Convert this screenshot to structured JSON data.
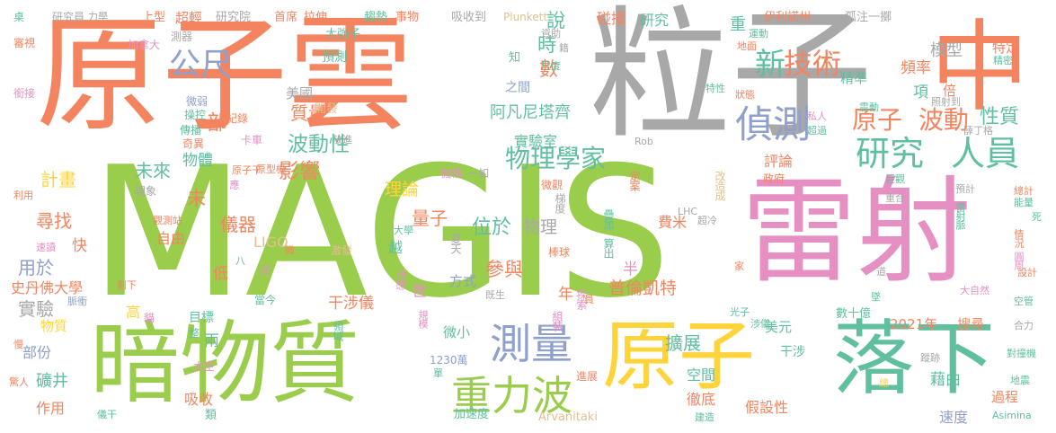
{
  "colors": {
    "salmon": "#f4845f",
    "green": "#9acd4c",
    "gray": "#a8a8a8",
    "pink": "#e58fc2",
    "teal": "#5fbf9f",
    "yellow": "#ffd43a",
    "blue": "#8ea0cb",
    "tan": "#e2c08f"
  },
  "words": [
    {
      "id": "MAGIS",
      "text": "MAGIS",
      "color": "green"
    },
    {
      "id": "原子雲",
      "text": "原子雲",
      "color": "salmon"
    },
    {
      "id": "粒子",
      "text": "粒子",
      "color": "gray"
    },
    {
      "id": "中",
      "text": "中",
      "color": "salmon"
    },
    {
      "id": "雷射",
      "text": "雷射",
      "color": "pink"
    },
    {
      "id": "暗物質",
      "text": "暗物質",
      "color": "green"
    },
    {
      "id": "原子_big",
      "text": "原子",
      "color": "yellow"
    },
    {
      "id": "落下",
      "text": "落下",
      "color": "teal"
    },
    {
      "id": "測量",
      "text": "測量",
      "color": "blue"
    },
    {
      "id": "重力波",
      "text": "重力波",
      "color": "green"
    },
    {
      "id": "公尺",
      "text": "公尺",
      "color": "blue"
    },
    {
      "id": "偵測",
      "text": "偵測",
      "color": "blue"
    },
    {
      "id": "研究_teal",
      "text": "研究",
      "color": "teal"
    },
    {
      "id": "人員",
      "text": "人員",
      "color": "teal"
    },
    {
      "id": "新",
      "text": "新",
      "color": "teal"
    },
    {
      "id": "技術",
      "text": "技術",
      "color": "salmon"
    },
    {
      "id": "原子_small",
      "text": "原子",
      "color": "salmon"
    },
    {
      "id": "波動_mid",
      "text": "波動",
      "color": "salmon"
    },
    {
      "id": "物理學家",
      "text": "物理學家",
      "color": "teal"
    },
    {
      "id": "波動性",
      "text": "波動性",
      "color": "teal"
    },
    {
      "id": "影響",
      "text": "影響",
      "color": "salmon"
    },
    {
      "id": "質量",
      "text": "質量",
      "color": "salmon"
    },
    {
      "id": "未來",
      "text": "未來",
      "color": "teal"
    },
    {
      "id": "計畫",
      "text": "計畫",
      "color": "yellow"
    },
    {
      "id": "尋找",
      "text": "尋找",
      "color": "salmon"
    },
    {
      "id": "實驗",
      "text": "實驗",
      "color": "gray"
    },
    {
      "id": "用於",
      "text": "用於",
      "color": "blue"
    },
    {
      "id": "史丹佛大學",
      "text": "史丹佛大學",
      "color": "salmon"
    },
    {
      "id": "物質",
      "text": "物質",
      "color": "yellow"
    },
    {
      "id": "部份",
      "text": "部份",
      "color": "blue"
    },
    {
      "id": "礦井",
      "text": "礦井",
      "color": "teal"
    },
    {
      "id": "作用",
      "text": "作用",
      "color": "salmon"
    },
    {
      "id": "儀器",
      "text": "儀器",
      "color": "salmon"
    },
    {
      "id": "自由",
      "text": "自由",
      "color": "salmon"
    },
    {
      "id": "LIGO",
      "text": "LIGO",
      "color": "tan"
    },
    {
      "id": "理論",
      "text": "理論",
      "color": "yellow"
    },
    {
      "id": "量子",
      "text": "量子",
      "color": "salmon"
    },
    {
      "id": "位於",
      "text": "位於",
      "color": "teal"
    },
    {
      "id": "物理",
      "text": "物理",
      "color": "gray"
    },
    {
      "id": "參與",
      "text": "參與",
      "color": "salmon"
    },
    {
      "id": "方式",
      "text": "方式",
      "color": "blue"
    },
    {
      "id": "實驗室",
      "text": "實驗室",
      "color": "teal"
    },
    {
      "id": "阿凡尼塔齊",
      "text": "阿凡尼塔齊",
      "color": "teal"
    },
    {
      "id": "之間",
      "text": "之間",
      "color": "blue"
    },
    {
      "id": "美國",
      "text": "美國",
      "color": "gray"
    },
    {
      "id": "預測",
      "text": "預測",
      "color": "teal"
    },
    {
      "id": "開發",
      "text": "開發",
      "color": "tan"
    },
    {
      "id": "大強子",
      "text": "大強子",
      "color": "teal"
    },
    {
      "id": "普倫凱特",
      "text": "普倫凱特",
      "color": "salmon"
    },
    {
      "id": "費米",
      "text": "費米",
      "color": "salmon"
    },
    {
      "id": "半",
      "text": "半",
      "color": "pink"
    },
    {
      "id": "擴展",
      "text": "擴展",
      "color": "teal"
    },
    {
      "id": "空間",
      "text": "空間",
      "color": "teal"
    },
    {
      "id": "徹底",
      "text": "徹底",
      "color": "salmon"
    },
    {
      "id": "假設性",
      "text": "假設性",
      "color": "salmon"
    },
    {
      "id": "美元",
      "text": "美元",
      "color": "teal"
    },
    {
      "id": "干涉_r",
      "text": "干涉",
      "color": "teal"
    },
    {
      "id": "2021年",
      "text": "2021年",
      "color": "salmon"
    },
    {
      "id": "搜尋",
      "text": "搜尋",
      "color": "salmon"
    },
    {
      "id": "干涉儀",
      "text": "干涉儀",
      "color": "salmon"
    },
    {
      "id": "高",
      "text": "高",
      "color": "yellow"
    },
    {
      "id": "目標",
      "text": "目標",
      "color": "teal"
    },
    {
      "id": "兩",
      "text": "兩",
      "color": "teal"
    },
    {
      "id": "吸收",
      "text": "吸收",
      "color": "salmon"
    },
    {
      "id": "評論",
      "text": "評論",
      "color": "salmon"
    },
    {
      "id": "性質",
      "text": "性質",
      "color": "teal"
    },
    {
      "id": "頻率",
      "text": "頻率",
      "color": "salmon"
    },
    {
      "id": "模型",
      "text": "模型",
      "color": "gray"
    },
    {
      "id": "特定",
      "text": "特定",
      "color": "salmon"
    },
    {
      "id": "精準",
      "text": "精準",
      "color": "teal"
    },
    {
      "id": "過程",
      "text": "過程",
      "color": "salmon"
    },
    {
      "id": "速度",
      "text": "速度",
      "color": "blue"
    },
    {
      "id": "重",
      "text": "重",
      "color": "teal"
    },
    {
      "id": "說",
      "text": "說",
      "color": "teal"
    },
    {
      "id": "時",
      "text": "時",
      "color": "teal"
    },
    {
      "id": "數",
      "text": "數",
      "color": "salmon"
    },
    {
      "id": "部",
      "text": "部",
      "color": "salmon"
    },
    {
      "id": "物體",
      "text": "物體",
      "color": "teal"
    },
    {
      "id": "未",
      "text": "未",
      "color": "salmon"
    },
    {
      "id": "年",
      "text": "年",
      "color": "salmon"
    },
    {
      "id": "快",
      "text": "快",
      "color": "salmon"
    },
    {
      "id": "低",
      "text": "低",
      "color": "salmon"
    },
    {
      "id": "倍",
      "text": "倍",
      "color": "salmon"
    },
    {
      "id": "項",
      "text": "項",
      "color": "teal"
    },
    {
      "id": "研究_s",
      "text": "研究",
      "color": "teal"
    },
    {
      "id": "碰撞",
      "text": "碰撞",
      "color": "salmon"
    },
    {
      "id": "微小",
      "text": "微小",
      "color": "teal"
    },
    {
      "id": "越",
      "text": "越",
      "color": "teal"
    },
    {
      "id": "世",
      "text": "世",
      "color": "pink"
    },
    {
      "id": "藉由",
      "text": "藉由",
      "color": "teal"
    },
    {
      "id": "數十億",
      "text": "數十億",
      "color": "teal"
    },
    {
      "id": "超輕",
      "text": "超輕",
      "color": "salmon"
    },
    {
      "id": "上型",
      "text": "上型",
      "color": "salmon"
    },
    {
      "id": "研究院",
      "text": "研究院",
      "color": "gray"
    },
    {
      "id": "首席",
      "text": "首席",
      "color": "salmon"
    },
    {
      "id": "拉伸",
      "text": "拉伸",
      "color": "salmon"
    },
    {
      "id": "趨勢",
      "text": "趨勢",
      "color": "teal"
    },
    {
      "id": "事物",
      "text": "事物",
      "color": "salmon"
    },
    {
      "id": "吸收到",
      "text": "吸收到",
      "color": "gray"
    },
    {
      "id": "Plunkett",
      "text": "Plunkett",
      "color": "tan"
    },
    {
      "id": "伊利諾州",
      "text": "伊利諾州",
      "color": "salmon"
    },
    {
      "id": "孤注一擲",
      "text": "孤注一擲",
      "color": "gray"
    },
    {
      "id": "研究員",
      "text": "研究員",
      "color": "gray"
    },
    {
      "id": "力學",
      "text": "力學",
      "color": "gray"
    },
    {
      "id": "加拿大",
      "text": "加拿大",
      "color": "pink"
    },
    {
      "id": "測器",
      "text": "測器",
      "color": "gray"
    },
    {
      "id": "審視",
      "text": "審視",
      "color": "salmon"
    },
    {
      "id": "銜接",
      "text": "銜接",
      "color": "pink"
    },
    {
      "id": "微弱",
      "text": "微弱",
      "color": "blue"
    },
    {
      "id": "操控",
      "text": "操控",
      "color": "teal"
    },
    {
      "id": "紀錄",
      "text": "紀錄",
      "color": "salmon"
    },
    {
      "id": "傳播",
      "text": "傳播",
      "color": "teal"
    },
    {
      "id": "奇異",
      "text": "奇異",
      "color": "salmon"
    },
    {
      "id": "卡車",
      "text": "卡車",
      "color": "pink"
    },
    {
      "id": "放進",
      "text": "放進",
      "color": "gray"
    },
    {
      "id": "原子干",
      "text": "原子干",
      "color": "salmon"
    },
    {
      "id": "原型機",
      "text": "原型機",
      "color": "salmon"
    },
    {
      "id": "機構",
      "text": "機構",
      "color": "pink"
    },
    {
      "id": "一如",
      "text": "一如",
      "color": "gray"
    },
    {
      "id": "現象",
      "text": "現象",
      "color": "gray"
    },
    {
      "id": "觀測站",
      "text": "觀測站",
      "color": "salmon"
    },
    {
      "id": "利用",
      "text": "利用",
      "color": "salmon"
    },
    {
      "id": "速讀",
      "text": "速讀",
      "color": "pink"
    },
    {
      "id": "劃下",
      "text": "劃下",
      "color": "salmon"
    },
    {
      "id": "貓",
      "text": "貓",
      "color": "pink"
    },
    {
      "id": "當今",
      "text": "當今",
      "color": "teal"
    },
    {
      "id": "脈衝",
      "text": "脈衝",
      "color": "blue"
    },
    {
      "id": "整",
      "text": "整",
      "color": "teal"
    },
    {
      "id": "太空",
      "text": "太空",
      "color": "pink"
    },
    {
      "id": "類",
      "text": "類",
      "color": "teal"
    },
    {
      "id": "激發",
      "text": "激發",
      "color": "tan"
    },
    {
      "id": "領域",
      "text": "領域",
      "color": "teal"
    },
    {
      "id": "規模",
      "text": "規模",
      "color": "pink"
    },
    {
      "id": "涉感",
      "text": "涉感",
      "color": "pink"
    },
    {
      "id": "既生",
      "text": "既生",
      "color": "gray"
    },
    {
      "id": "1230萬",
      "text": "1230萬",
      "color": "blue"
    },
    {
      "id": "單",
      "text": "單",
      "color": "teal"
    },
    {
      "id": "加速度",
      "text": "加速度",
      "color": "teal"
    },
    {
      "id": "Arvanitaki",
      "text": "Arvanitaki",
      "color": "tan"
    },
    {
      "id": "進展",
      "text": "進展",
      "color": "salmon"
    },
    {
      "id": "組裝",
      "text": "組裝",
      "color": "pink"
    },
    {
      "id": "探索",
      "text": "探索",
      "color": "pink"
    },
    {
      "id": "棒球",
      "text": "棒球",
      "color": "salmon"
    },
    {
      "id": "夏天",
      "text": "夏天",
      "color": "gray"
    },
    {
      "id": "算出",
      "text": "算出",
      "color": "teal"
    },
    {
      "id": "疊加",
      "text": "疊加",
      "color": "teal"
    },
    {
      "id": "梯度",
      "text": "梯度",
      "color": "gray"
    },
    {
      "id": "微觀",
      "text": "微觀",
      "color": "salmon"
    },
    {
      "id": "定案",
      "text": "定案",
      "color": "salmon"
    },
    {
      "id": "改造成",
      "text": "改造成",
      "color": "tan"
    },
    {
      "id": "政府",
      "text": "政府",
      "color": "salmon"
    },
    {
      "id": "LHC",
      "text": "LHC",
      "color": "gray"
    },
    {
      "id": "超冷",
      "text": "超冷",
      "color": "gray"
    },
    {
      "id": "光子",
      "text": "光子",
      "color": "teal"
    },
    {
      "id": "涉儀",
      "text": "涉儀",
      "color": "teal"
    },
    {
      "id": "家",
      "text": "家",
      "color": "salmon"
    },
    {
      "id": "巨觀",
      "text": "巨觀",
      "color": "teal"
    },
    {
      "id": "重合",
      "text": "重合",
      "color": "gray"
    },
    {
      "id": "預計",
      "text": "預計",
      "color": "gray"
    },
    {
      "id": "總計",
      "text": "總計",
      "color": "salmon"
    },
    {
      "id": "能量",
      "text": "能量",
      "color": "teal"
    },
    {
      "id": "雷射脈",
      "text": "雷射脈",
      "color": "teal"
    },
    {
      "id": "死",
      "text": "死",
      "color": "teal"
    },
    {
      "id": "情況",
      "text": "情況",
      "color": "salmon"
    },
    {
      "id": "圓周",
      "text": "圓周",
      "color": "pink"
    },
    {
      "id": "設計",
      "text": "設計",
      "color": "salmon"
    },
    {
      "id": "大自然",
      "text": "大自然",
      "color": "pink"
    },
    {
      "id": "空管",
      "text": "空管",
      "color": "teal"
    },
    {
      "id": "合力",
      "text": "合力",
      "color": "gray"
    },
    {
      "id": "對撞機",
      "text": "對撞機",
      "color": "teal"
    },
    {
      "id": "地震",
      "text": "地震",
      "color": "teal"
    },
    {
      "id": "Asimina",
      "text": "Asimina",
      "color": "teal"
    },
    {
      "id": "蹤跡",
      "text": "蹤跡",
      "color": "gray"
    },
    {
      "id": "建造",
      "text": "建造",
      "color": "teal"
    },
    {
      "id": "墜",
      "text": "墜",
      "color": "teal"
    },
    {
      "id": "道",
      "text": "道",
      "color": "gray"
    },
    {
      "id": "照射到",
      "text": "照射到",
      "color": "gray"
    },
    {
      "id": "薛丁格",
      "text": "薛丁格",
      "color": "gray"
    },
    {
      "id": "私人",
      "text": "私人",
      "color": "pink"
    },
    {
      "id": "超過",
      "text": "超過",
      "color": "teal"
    },
    {
      "id": "狀態",
      "text": "狀態",
      "color": "salmon"
    },
    {
      "id": "特性",
      "text": "特性",
      "color": "teal"
    },
    {
      "id": "震動",
      "text": "震動",
      "color": "teal"
    },
    {
      "id": "精密",
      "text": "精密",
      "color": "teal"
    },
    {
      "id": "運動",
      "text": "運動",
      "color": "teal"
    },
    {
      "id": "地面",
      "text": "地面",
      "color": "salmon"
    },
    {
      "id": "資助",
      "text": "資助",
      "color": "gray"
    },
    {
      "id": "尺度",
      "text": "尺度",
      "color": "teal"
    },
    {
      "id": "Rob",
      "text": "Rob",
      "color": "gray"
    },
    {
      "id": "知",
      "text": "知",
      "color": "teal"
    },
    {
      "id": "籍",
      "text": "籍",
      "color": "gray"
    },
    {
      "id": "桌",
      "text": "桌",
      "color": "teal"
    },
    {
      "id": "儀干",
      "text": "儀干",
      "color": "teal"
    },
    {
      "id": "驚人",
      "text": "驚人",
      "color": "salmon"
    },
    {
      "id": "慢",
      "text": "慢",
      "color": "salmon"
    },
    {
      "id": "應",
      "text": "應",
      "color": "pink"
    },
    {
      "id": "大學",
      "text": "大學",
      "color": "teal"
    },
    {
      "id": "微",
      "text": "微",
      "color": "salmon"
    },
    {
      "id": "八",
      "text": "八",
      "color": "teal"
    },
    {
      "id": "波",
      "text": "波",
      "color": "pink"
    },
    {
      "id": "員",
      "text": "員",
      "color": "salmon"
    },
    {
      "id": "總",
      "text": "總",
      "color": "yellow"
    }
  ]
}
